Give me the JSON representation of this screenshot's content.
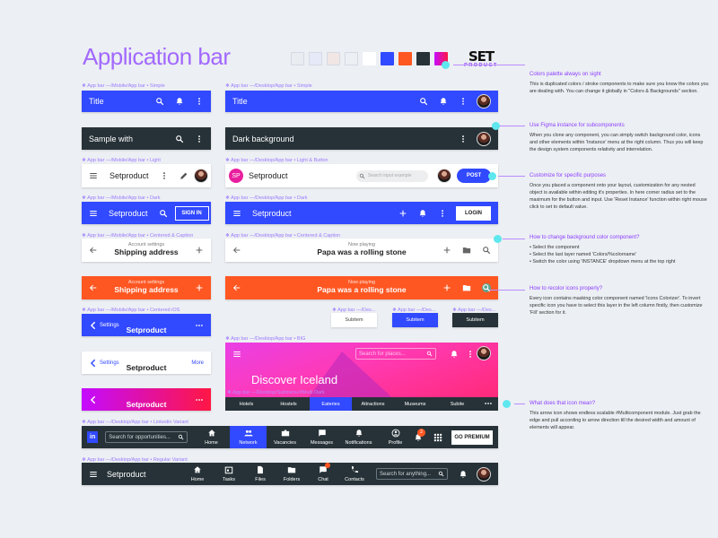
{
  "title": "Application bar",
  "palette": [
    "#e9ecf0",
    "#e6e9f7",
    "#f1e6e3",
    "#eceff3",
    "#ffffff",
    "#3149ff",
    "#ff5722",
    "#263238",
    "#e91e9e"
  ],
  "logo": {
    "top": "SET",
    "bottom": "PRODUCT"
  },
  "captions": {
    "mobile_simple": "❖ App bar —/Mobile/App bar • Simple",
    "desktop_simple": "❖ App bar —/Desktop/App bar • Simple",
    "mobile_light": "❖ App bar —/Mobile/App bar • Light",
    "desktop_light": "❖ App bar —/Desktop/App bar • Light & Button",
    "mobile_dark": "❖ App bar —/Mobile/App bar • Dark",
    "desktop_dark": "❖ App bar —/Desktop/App bar • Dark",
    "mobile_centered": "❖ App bar —/Mobile/App bar • Centered & Caption",
    "desktop_centered": "❖ App bar —/Desktop/App bar • Centered & Caption",
    "mobile_ios": "❖ App bar —/Mobile/App bar • Centered iOS",
    "sub1": "❖ App bar —/Des...",
    "sub2": "❖ App bar —/Des...",
    "sub3": "❖ App bar —/Des...",
    "desktop_big": "❖ App bar —/Desktop/App bar • BIG",
    "submenu": "❖ App bar —/Desktop/Submenu/#Multi Dark",
    "linkedin": "❖ App bar —/Desktop/App bar • Linkedin Variant",
    "regular": "❖ App bar —/Desktop/App bar • Regular Variant"
  },
  "bars": {
    "m_simple_title": "Title",
    "d_simple_title": "Title",
    "m_dark_title": "Sample with",
    "d_dark_title": "Dark background",
    "m_light_title": "Setproduct",
    "d_light": {
      "logo": "SP",
      "title": "Setproduct",
      "search_placeholder": "Search input example",
      "button": "POST"
    },
    "m_blue": {
      "title": "Setproduct",
      "button": "SIGN IN"
    },
    "d_blue": {
      "title": "Setproduct",
      "button": "LOGIN"
    },
    "m_centered": {
      "caption": "Account settings",
      "title": "Shipping address"
    },
    "d_centered": {
      "caption": "Now playing",
      "title": "Papa was a rolling stone"
    },
    "m_orange": {
      "caption": "Account settings",
      "title": "Shipping address"
    },
    "d_orange": {
      "caption": "Now playing",
      "title": "Papa was a rolling stone"
    },
    "m_ios_blue": {
      "back": "Settings",
      "title": "Setproduct"
    },
    "m_ios_white": {
      "back": "Settings",
      "title": "Setproduct",
      "action": "More"
    },
    "m_gradient_title": "Setproduct",
    "subitems": [
      "Subitem",
      "Subitem",
      "Subitem"
    ]
  },
  "big": {
    "search_placeholder": "Search for places...",
    "headline": "Discover Iceland",
    "tabs": [
      "Hotels",
      "Hostels",
      "Eateries",
      "Attractions",
      "Museums",
      "Subite"
    ],
    "active_tab": 2
  },
  "linkedin": {
    "logo": "in",
    "search_placeholder": "Search for opportunities...",
    "nav": [
      {
        "label": "Home",
        "icon": "home-icon"
      },
      {
        "label": "Network",
        "icon": "people-icon",
        "active": true
      },
      {
        "label": "Vacancies",
        "icon": "briefcase-icon"
      },
      {
        "label": "Messages",
        "icon": "message-icon"
      },
      {
        "label": "Notifications",
        "icon": "bell-icon"
      },
      {
        "label": "Profile",
        "icon": "user-icon"
      }
    ],
    "badge": "2",
    "button": "GO PREMIUM"
  },
  "regular": {
    "title": "Setproduct",
    "nav": [
      {
        "label": "Home",
        "icon": "home-icon"
      },
      {
        "label": "Tasks",
        "icon": "calendar-icon"
      },
      {
        "label": "Files",
        "icon": "file-icon"
      },
      {
        "label": "Folders",
        "icon": "folder-icon"
      },
      {
        "label": "Chat",
        "icon": "chat-icon"
      },
      {
        "label": "Contacts",
        "icon": "phone-icon"
      }
    ],
    "search_placeholder": "Search for anything..."
  },
  "notes": [
    {
      "title": "Colors palette always on sight",
      "body": "This is duplicated colors / stroke components to make sure you know the colors you are dealing with. You can change it globally in \"Colors & Backgrounds\" section."
    },
    {
      "title": "Use Figma instance for subcomponents",
      "body": "When you clone any component, you can simply switch background color, icons and other elements within 'Instance' menu at the right column. Thus you will keep the design system components relativity and interrelation."
    },
    {
      "title": "Customize for specific purposes",
      "body": "Once you placed a component onto your layout, customization for any nested object is available within editing it's properties. In here corner radius set to the maximum for the button and input. Use 'Reset Instance' function within right mouse click to set to default value."
    },
    {
      "title": "How to change background color component?",
      "body": "• Select the component\n• Select the last layer named 'Colors/%colorname'\n• Switch the color using 'INSTANCE' dropdown menu at the top right"
    },
    {
      "title": "How to recolor icons properly?",
      "body": "Every icon contains masking color component named 'Icons Colorizer'. To invert specific icon you have to select this layer in the left column firstly, then customize 'Fill' section for it."
    },
    {
      "title": "What does that icon mean?",
      "body": "This arrow icon shows endless scalable #Multicomponent module. Just grab the edge and pull according to arrow direction till the desired width and amount of elements will appear."
    }
  ]
}
